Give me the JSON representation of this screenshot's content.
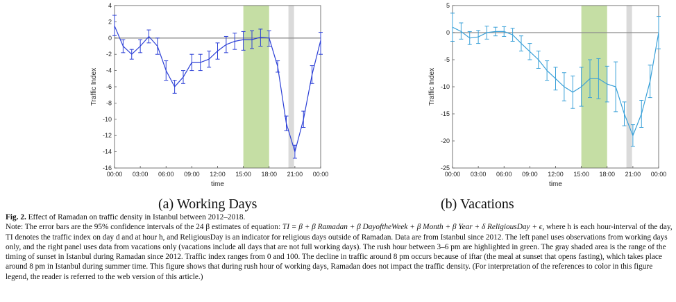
{
  "colors": {
    "line_left": "#2b3fd6",
    "line_right": "#39a0d8",
    "rush_fill": "#c5dea4",
    "sunset_fill": "#dadada",
    "zero_line": "#8c8c8c",
    "axis": "#555555"
  },
  "chart_data": [
    {
      "type": "line",
      "panel": "(a) Working Days",
      "xlabel": "time",
      "ylabel": "Traffic Index",
      "xticks": [
        "00:00",
        "03:00",
        "06:00",
        "09:00",
        "12:00",
        "15:00",
        "18:00",
        "21:00",
        "00:00"
      ],
      "xlim": [
        0,
        24
      ],
      "yticks": [
        4,
        2,
        0,
        -2,
        -4,
        -6,
        -8,
        -10,
        -12,
        -14,
        -16
      ],
      "ylim": [
        -16,
        4
      ],
      "rush_hour": [
        15,
        18
      ],
      "sunset_range": [
        20.25,
        20.9
      ],
      "x": [
        0,
        1,
        2,
        3,
        4,
        5,
        6,
        7,
        8,
        9,
        10,
        11,
        12,
        13,
        14,
        15,
        16,
        17,
        18,
        19,
        20,
        21,
        22,
        23,
        24
      ],
      "values": [
        1.5,
        -1,
        -2,
        -1,
        0.2,
        -1,
        -4,
        -6,
        -4.8,
        -3,
        -3,
        -2.6,
        -1.6,
        -0.8,
        -0.4,
        -0.2,
        -0.2,
        0.1,
        0,
        -3.5,
        -10.5,
        -14,
        -10,
        -4.5,
        -0.3
      ],
      "lower": [
        0.3,
        -1.8,
        -2.6,
        -1.8,
        -0.6,
        -2,
        -5.2,
        -6.8,
        -5.6,
        -4,
        -4,
        -3.6,
        -2.6,
        -1.8,
        -1.4,
        -1.5,
        -1.3,
        -1,
        -1,
        -4.2,
        -11.4,
        -14.8,
        -11,
        -5.6,
        -2
      ],
      "upper": [
        2.8,
        -0.2,
        -1.4,
        -0.2,
        1,
        0,
        -2.8,
        -5.2,
        -4,
        -2,
        -2,
        -1.6,
        -0.6,
        0.2,
        0.6,
        0.8,
        0.9,
        1.1,
        0.9,
        -2.8,
        -9.6,
        -13.2,
        -9,
        -3.4,
        0.7
      ]
    },
    {
      "type": "line",
      "panel": "(b) Vacations",
      "xlabel": "time",
      "ylabel": "Traffic Index",
      "xticks": [
        "00:00",
        "03:00",
        "06:00",
        "09:00",
        "12:00",
        "15:00",
        "18:00",
        "21:00",
        "00:00"
      ],
      "xlim": [
        0,
        24
      ],
      "yticks": [
        5,
        0,
        -5,
        -10,
        -15,
        -20,
        -25
      ],
      "ylim": [
        -25,
        5
      ],
      "rush_hour": [
        15,
        18
      ],
      "sunset_range": [
        20.25,
        20.9
      ],
      "x": [
        0,
        1,
        2,
        3,
        4,
        5,
        6,
        7,
        8,
        9,
        10,
        11,
        12,
        13,
        14,
        15,
        16,
        17,
        18,
        19,
        20,
        21,
        22,
        23,
        24
      ],
      "values": [
        1,
        0.2,
        -1,
        -0.8,
        0,
        0.2,
        0.2,
        -0.4,
        -2,
        -3.5,
        -5,
        -7,
        -8.5,
        -10,
        -11,
        -10,
        -8.5,
        -8.5,
        -9.5,
        -10,
        -15,
        -19,
        -15,
        -9,
        0
      ],
      "lower": [
        -1.6,
        -1.2,
        -2.2,
        -2,
        -1.2,
        -0.6,
        -0.7,
        -1.6,
        -3.4,
        -5,
        -6.6,
        -8.8,
        -10.6,
        -12.6,
        -14,
        -13.6,
        -12,
        -12.2,
        -12.8,
        -14.6,
        -17.2,
        -21,
        -17.5,
        -12,
        -3
      ],
      "upper": [
        3.6,
        1.8,
        0.2,
        0.4,
        1.2,
        1,
        1.1,
        0.8,
        -0.6,
        -2,
        -3.4,
        -5.2,
        -6.4,
        -7.4,
        -8,
        -6.4,
        -5,
        -4.8,
        -6.2,
        -5.4,
        -12.8,
        -17,
        -12.5,
        -6,
        3
      ]
    }
  ],
  "subcaptions": {
    "left": "(a) Working Days",
    "right": "(b) Vacations"
  },
  "caption": {
    "fig_label": "Fig. 2.",
    "title": "Effect of Ramadan on traffic density in Istanbul between 2012–2018.",
    "note_start": "Note: The error bars are the 95% confidence intervals of the 24 β",
    "note_start_tail": " estimates of equation: ",
    "equation": "TI = β + β Ramadan + β DayoftheWeek + β Month + β Year + δ ReligiousDay + ϵ,",
    "body_1": "where h is each hour-interval of the day, TI denotes the traffic index on day d and at hour h, and ReligiousDay is an indicator for religious days outside of Ramadan. Data are from Istanbul since 2012. The left panel uses observations from working days only, and the right panel uses data from vacations only (vacations include all days that are not full working days). The rush hour between 3–6 pm are highlighted in green. The gray shaded area is the range of the timing of sunset in Istanbul during Ramadan since 2012. Traffic index ranges from 0 and 100. The decline in traffic around 8 pm occurs because of iftar (the meal at sunset that opens fasting), which takes place around 8 pm in Istanbul during summer time. This figure shows that during rush hour of working days, Ramadan does not impact the traffic density. (For interpretation of the references to color in this figure legend, the reader is referred to the web version of this article.)"
  }
}
